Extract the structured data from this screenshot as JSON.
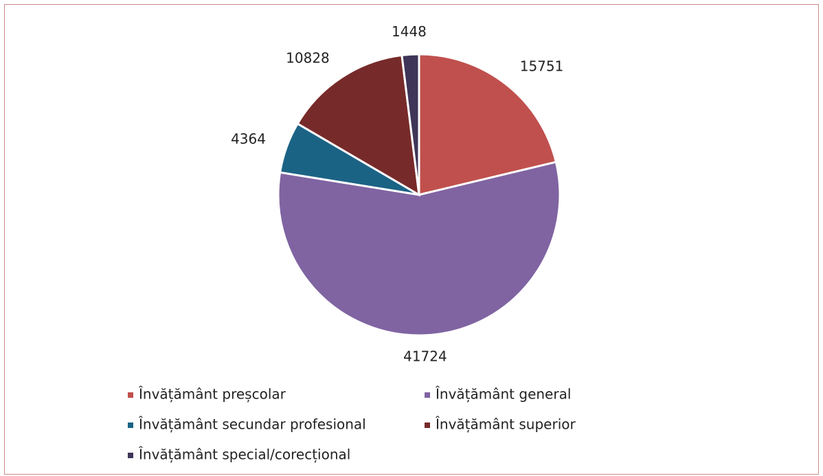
{
  "chart_data": {
    "type": "pie",
    "categories": [
      "Învățământ preșcolar",
      "Învățământ general",
      "Învățământ secundar profesional",
      "Învățământ superior",
      "Învățământ special/corecțional"
    ],
    "values": [
      15751,
      41724,
      4364,
      10828,
      1448
    ],
    "colors": [
      "#c0504d",
      "#8064a2",
      "#1b6385",
      "#772a2a",
      "#3f3559"
    ],
    "legend": "bottom"
  }
}
